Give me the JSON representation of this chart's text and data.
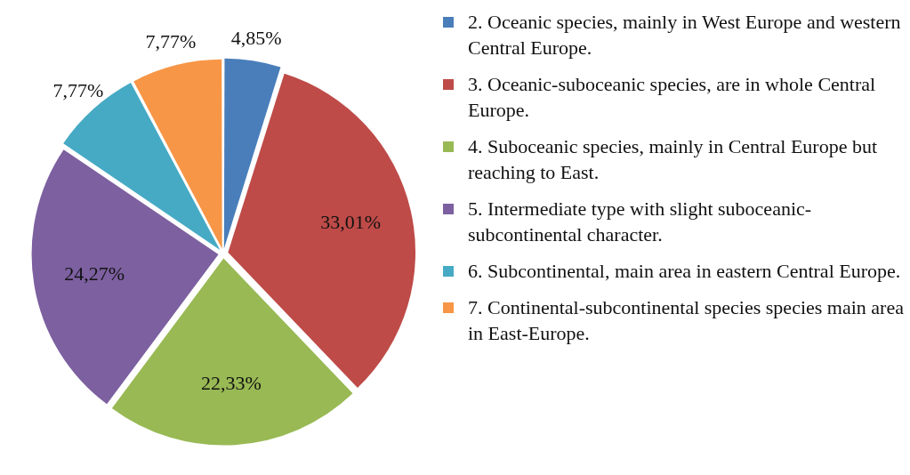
{
  "chart_data": {
    "type": "pie",
    "categories": [
      "2. Oceanic species, mainly in West Europe and western Central Europe.",
      "3. Oceanic-suboceanic species, are in whole Central Europe.",
      "4. Suboceanic species, mainly in Central Europe but reaching to East.",
      "5. Intermediate type with slight suboceanic-subcontinental character.",
      "6. Subcontinental, main area in eastern Central Europe.",
      "7. Continental-subcontinental species species main area in East-Europe."
    ],
    "values": [
      4.85,
      33.01,
      22.33,
      24.27,
      7.77,
      7.77
    ],
    "value_labels": [
      "4,85%",
      "33,01%",
      "22,33%",
      "24,27%",
      "7,77%",
      "7,77%"
    ],
    "colors": [
      "#4a7ebb",
      "#be4b48",
      "#98b954",
      "#7d60a0",
      "#46aac5",
      "#f79646"
    ],
    "legend": "right"
  }
}
